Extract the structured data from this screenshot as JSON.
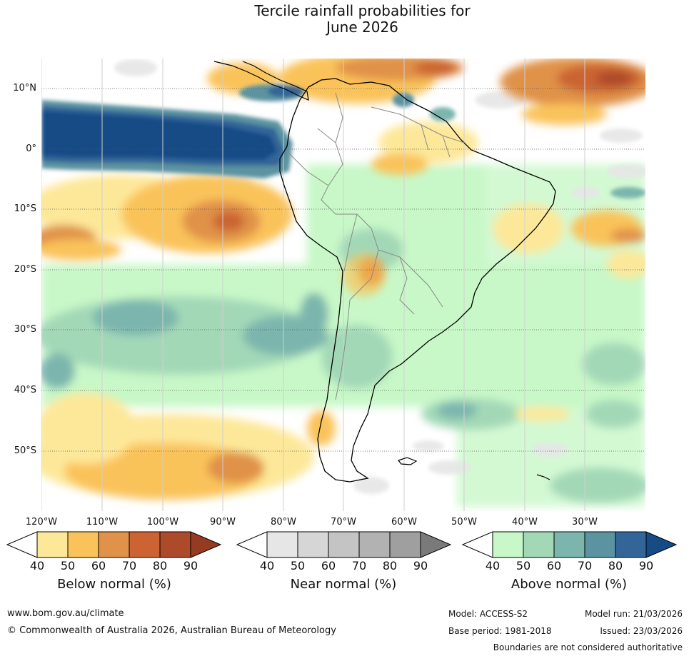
{
  "title_line1": "Tercile rainfall probabilities for",
  "title_line2": "June 2026",
  "lat_labels": [
    "10°N",
    "0°",
    "10°S",
    "20°S",
    "30°S",
    "40°S",
    "50°S"
  ],
  "lon_labels": [
    "120°W",
    "110°W",
    "100°W",
    "90°W",
    "80°W",
    "70°W",
    "60°W",
    "50°W",
    "40°W",
    "30°W"
  ],
  "colorbars": {
    "below": {
      "label": "Below normal (%)",
      "ticks": [
        "40",
        "50",
        "60",
        "70",
        "80",
        "90"
      ],
      "colors": [
        "#ffffff",
        "#fde89a",
        "#fac35a",
        "#e0924a",
        "#cb6432",
        "#ad4a2a",
        "#963a22"
      ]
    },
    "near": {
      "label": "Near normal (%)",
      "ticks": [
        "40",
        "50",
        "60",
        "70",
        "80",
        "90"
      ],
      "colors": [
        "#ffffff",
        "#e6e6e6",
        "#d6d6d6",
        "#c4c4c4",
        "#b2b2b2",
        "#9f9f9f",
        "#7a7a7a"
      ]
    },
    "above": {
      "label": "Above normal (%)",
      "ticks": [
        "40",
        "50",
        "60",
        "70",
        "80",
        "90"
      ],
      "colors": [
        "#ffffff",
        "#c8f8c8",
        "#a3d8b7",
        "#7bb5ad",
        "#5b93a0",
        "#336598",
        "#154c86"
      ]
    }
  },
  "footer": {
    "url": "www.bom.gov.au/climate",
    "copyright": "© Commonwealth of Australia 2026, Australian Bureau of Meteorology",
    "model": "Model: ACCESS-S2",
    "model_run": "Model run: 21/03/2026",
    "base_period": "Base period: 1981-2018",
    "issued": "Issued: 23/03/2026",
    "disclaimer": "Boundaries are not considered authoritative"
  }
}
